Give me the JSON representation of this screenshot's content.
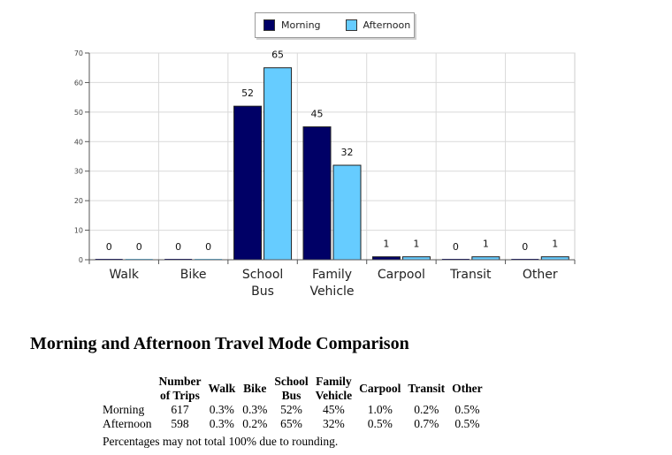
{
  "chart_data": {
    "type": "bar",
    "categories": [
      [
        "Walk"
      ],
      [
        "Bike"
      ],
      [
        "School",
        "Bus"
      ],
      [
        "Family",
        "Vehicle"
      ],
      [
        "Carpool"
      ],
      [
        "Transit"
      ],
      [
        "Other"
      ]
    ],
    "series": [
      {
        "name": "Morning",
        "color": "#000066",
        "values": [
          0,
          0,
          52,
          45,
          1,
          0,
          0
        ]
      },
      {
        "name": "Afternoon",
        "color": "#66ccff",
        "values": [
          0,
          0,
          65,
          32,
          1,
          1,
          1
        ]
      }
    ],
    "ylim": [
      0,
      70
    ],
    "yticks": [
      0,
      10,
      20,
      30,
      40,
      50,
      60,
      70
    ],
    "grid": true,
    "legend_position": "top-center"
  },
  "title": "Morning and Afternoon Travel Mode Comparison",
  "table": {
    "headers": [
      [
        "Number",
        "of Trips"
      ],
      [
        "Walk"
      ],
      [
        "Bike"
      ],
      [
        "School",
        "Bus"
      ],
      [
        "Family",
        "Vehicle"
      ],
      [
        "Carpool"
      ],
      [
        "Transit"
      ],
      [
        "Other"
      ]
    ],
    "rows": [
      {
        "label": "Morning",
        "cells": [
          "617",
          "0.3%",
          "0.3%",
          "52%",
          "45%",
          "1.0%",
          "0.2%",
          "0.5%"
        ]
      },
      {
        "label": "Afternoon",
        "cells": [
          "598",
          "0.3%",
          "0.2%",
          "65%",
          "32%",
          "0.5%",
          "0.7%",
          "0.5%"
        ]
      }
    ]
  },
  "note": "Percentages may not total 100% due to rounding."
}
